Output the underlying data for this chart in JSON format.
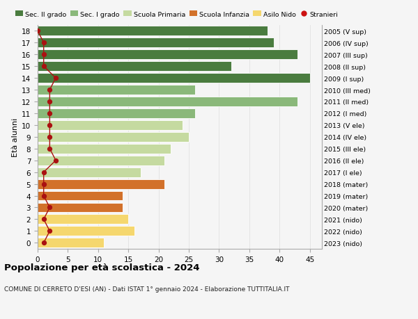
{
  "ages": [
    18,
    17,
    16,
    15,
    14,
    13,
    12,
    11,
    10,
    9,
    8,
    7,
    6,
    5,
    4,
    3,
    2,
    1,
    0
  ],
  "bar_values": [
    38,
    39,
    43,
    32,
    45,
    26,
    43,
    26,
    24,
    25,
    22,
    21,
    17,
    21,
    14,
    14,
    15,
    16,
    11
  ],
  "stranieri": [
    0,
    1,
    1,
    1,
    3,
    2,
    2,
    2,
    2,
    2,
    2,
    3,
    1,
    1,
    1,
    2,
    1,
    2,
    1
  ],
  "right_labels": [
    "2005 (V sup)",
    "2006 (IV sup)",
    "2007 (III sup)",
    "2008 (II sup)",
    "2009 (I sup)",
    "2010 (III med)",
    "2011 (II med)",
    "2012 (I med)",
    "2013 (V ele)",
    "2014 (IV ele)",
    "2015 (III ele)",
    "2016 (II ele)",
    "2017 (I ele)",
    "2018 (mater)",
    "2019 (mater)",
    "2020 (mater)",
    "2021 (nido)",
    "2022 (nido)",
    "2023 (nido)"
  ],
  "bar_colors": [
    "#4a7c3f",
    "#4a7c3f",
    "#4a7c3f",
    "#4a7c3f",
    "#4a7c3f",
    "#8ab87a",
    "#8ab87a",
    "#8ab87a",
    "#c5daa0",
    "#c5daa0",
    "#c5daa0",
    "#c5daa0",
    "#c5daa0",
    "#d2712a",
    "#d2712a",
    "#d2712a",
    "#f5d76e",
    "#f5d76e",
    "#f5d76e"
  ],
  "legend_labels": [
    "Sec. II grado",
    "Sec. I grado",
    "Scuola Primaria",
    "Scuola Infanzia",
    "Asilo Nido",
    "Stranieri"
  ],
  "legend_colors": [
    "#4a7c3f",
    "#8ab87a",
    "#c5daa0",
    "#d2712a",
    "#f5d76e",
    "#cc1111"
  ],
  "title": "Popolazione per età scolastica - 2024",
  "subtitle": "COMUNE DI CERRETO D'ESI (AN) - Dati ISTAT 1° gennaio 2024 - Elaborazione TUTTITALIA.IT",
  "ylabel": "Età alunni",
  "xlim": [
    0,
    47
  ],
  "stranieri_color": "#aa1111",
  "background_color": "#f5f5f5",
  "grid_color": "#dddddd"
}
